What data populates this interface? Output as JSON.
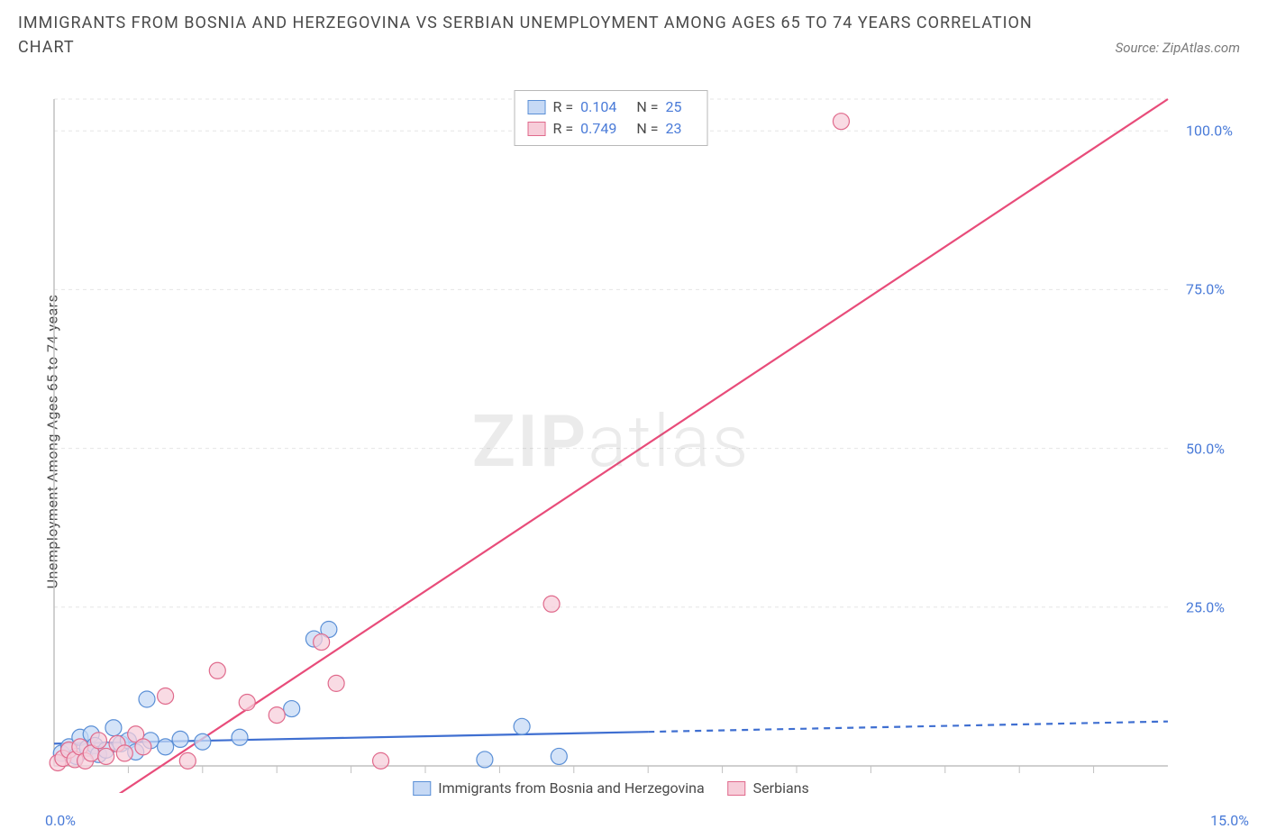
{
  "title": "IMMIGRANTS FROM BOSNIA AND HERZEGOVINA VS SERBIAN UNEMPLOYMENT AMONG AGES 65 TO 74 YEARS CORRELATION CHART",
  "source": "Source: ZipAtlas.com",
  "watermark_a": "ZIP",
  "watermark_b": "atlas",
  "y_axis_label": "Unemployment Among Ages 65 to 74 years",
  "legend_top": {
    "rows": [
      {
        "color_fill": "#c6d9f5",
        "color_stroke": "#5a8fd6",
        "r_label": "R =",
        "r": "0.104",
        "n_label": "N =",
        "n": "25"
      },
      {
        "color_fill": "#f7cdd9",
        "color_stroke": "#e06a8c",
        "r_label": "R =",
        "r": "0.749",
        "n_label": "N =",
        "n": "23"
      }
    ]
  },
  "legend_bottom": {
    "items": [
      {
        "color_fill": "#c6d9f5",
        "color_stroke": "#5a8fd6",
        "label": "Immigrants from Bosnia and Herzegovina"
      },
      {
        "color_fill": "#f7cdd9",
        "color_stroke": "#e06a8c",
        "label": "Serbians"
      }
    ]
  },
  "chart": {
    "type": "scatter",
    "xlim": [
      0,
      15
    ],
    "ylim": [
      0,
      105
    ],
    "x_ticks_labels": {
      "start": "0.0%",
      "end": "15.0%"
    },
    "y_ticks": [
      25,
      50,
      75,
      100
    ],
    "y_tick_labels": [
      "25.0%",
      "50.0%",
      "75.0%",
      "100.0%"
    ],
    "x_minor_ticks": [
      1,
      2,
      3,
      4,
      5,
      6,
      7,
      8,
      9,
      10,
      11,
      12,
      13,
      14
    ],
    "background_color": "#ffffff",
    "grid_color": "#e5e5e5",
    "axis_color": "#c0c0c0",
    "series": [
      {
        "name": "blue",
        "marker_fill": "#c6d9f5",
        "marker_stroke": "#5a8fd6",
        "marker_opacity": 0.75,
        "marker_r": 9,
        "line_color": "#3f6fd1",
        "line_width": 2.2,
        "line_solid_xmax": 8.0,
        "line": {
          "x1": 0,
          "y1": 3.5,
          "x2": 15,
          "y2": 7.0
        },
        "points": [
          [
            0.1,
            2.0
          ],
          [
            0.2,
            3.0
          ],
          [
            0.3,
            1.5
          ],
          [
            0.35,
            4.5
          ],
          [
            0.45,
            2.8
          ],
          [
            0.5,
            5.0
          ],
          [
            0.55,
            3.2
          ],
          [
            0.6,
            1.8
          ],
          [
            0.7,
            2.5
          ],
          [
            0.8,
            6.0
          ],
          [
            0.9,
            3.5
          ],
          [
            1.0,
            4.0
          ],
          [
            1.1,
            2.2
          ],
          [
            1.25,
            10.5
          ],
          [
            1.3,
            4.0
          ],
          [
            1.5,
            3.0
          ],
          [
            1.7,
            4.2
          ],
          [
            2.0,
            3.8
          ],
          [
            2.5,
            4.5
          ],
          [
            3.2,
            9.0
          ],
          [
            3.5,
            20.0
          ],
          [
            3.7,
            21.5
          ],
          [
            5.8,
            1.0
          ],
          [
            6.3,
            6.2
          ],
          [
            6.8,
            1.5
          ]
        ]
      },
      {
        "name": "pink",
        "marker_fill": "#f7cdd9",
        "marker_stroke": "#e06a8c",
        "marker_opacity": 0.72,
        "marker_r": 9,
        "line_color": "#e84c7a",
        "line_width": 2.2,
        "line_solid_xmax": 15,
        "line": {
          "x1": 0.8,
          "y1": -5,
          "x2": 15,
          "y2": 105
        },
        "points": [
          [
            0.05,
            0.5
          ],
          [
            0.12,
            1.2
          ],
          [
            0.2,
            2.5
          ],
          [
            0.28,
            1.0
          ],
          [
            0.35,
            3.0
          ],
          [
            0.42,
            0.8
          ],
          [
            0.5,
            2.0
          ],
          [
            0.6,
            4.0
          ],
          [
            0.7,
            1.5
          ],
          [
            0.85,
            3.5
          ],
          [
            0.95,
            2.0
          ],
          [
            1.1,
            5.0
          ],
          [
            1.2,
            3.0
          ],
          [
            1.5,
            11.0
          ],
          [
            1.8,
            0.8
          ],
          [
            2.2,
            15.0
          ],
          [
            2.6,
            10.0
          ],
          [
            3.0,
            8.0
          ],
          [
            3.6,
            19.5
          ],
          [
            3.8,
            13.0
          ],
          [
            4.4,
            0.8
          ],
          [
            6.7,
            25.5
          ],
          [
            10.6,
            101.5
          ]
        ]
      }
    ]
  }
}
